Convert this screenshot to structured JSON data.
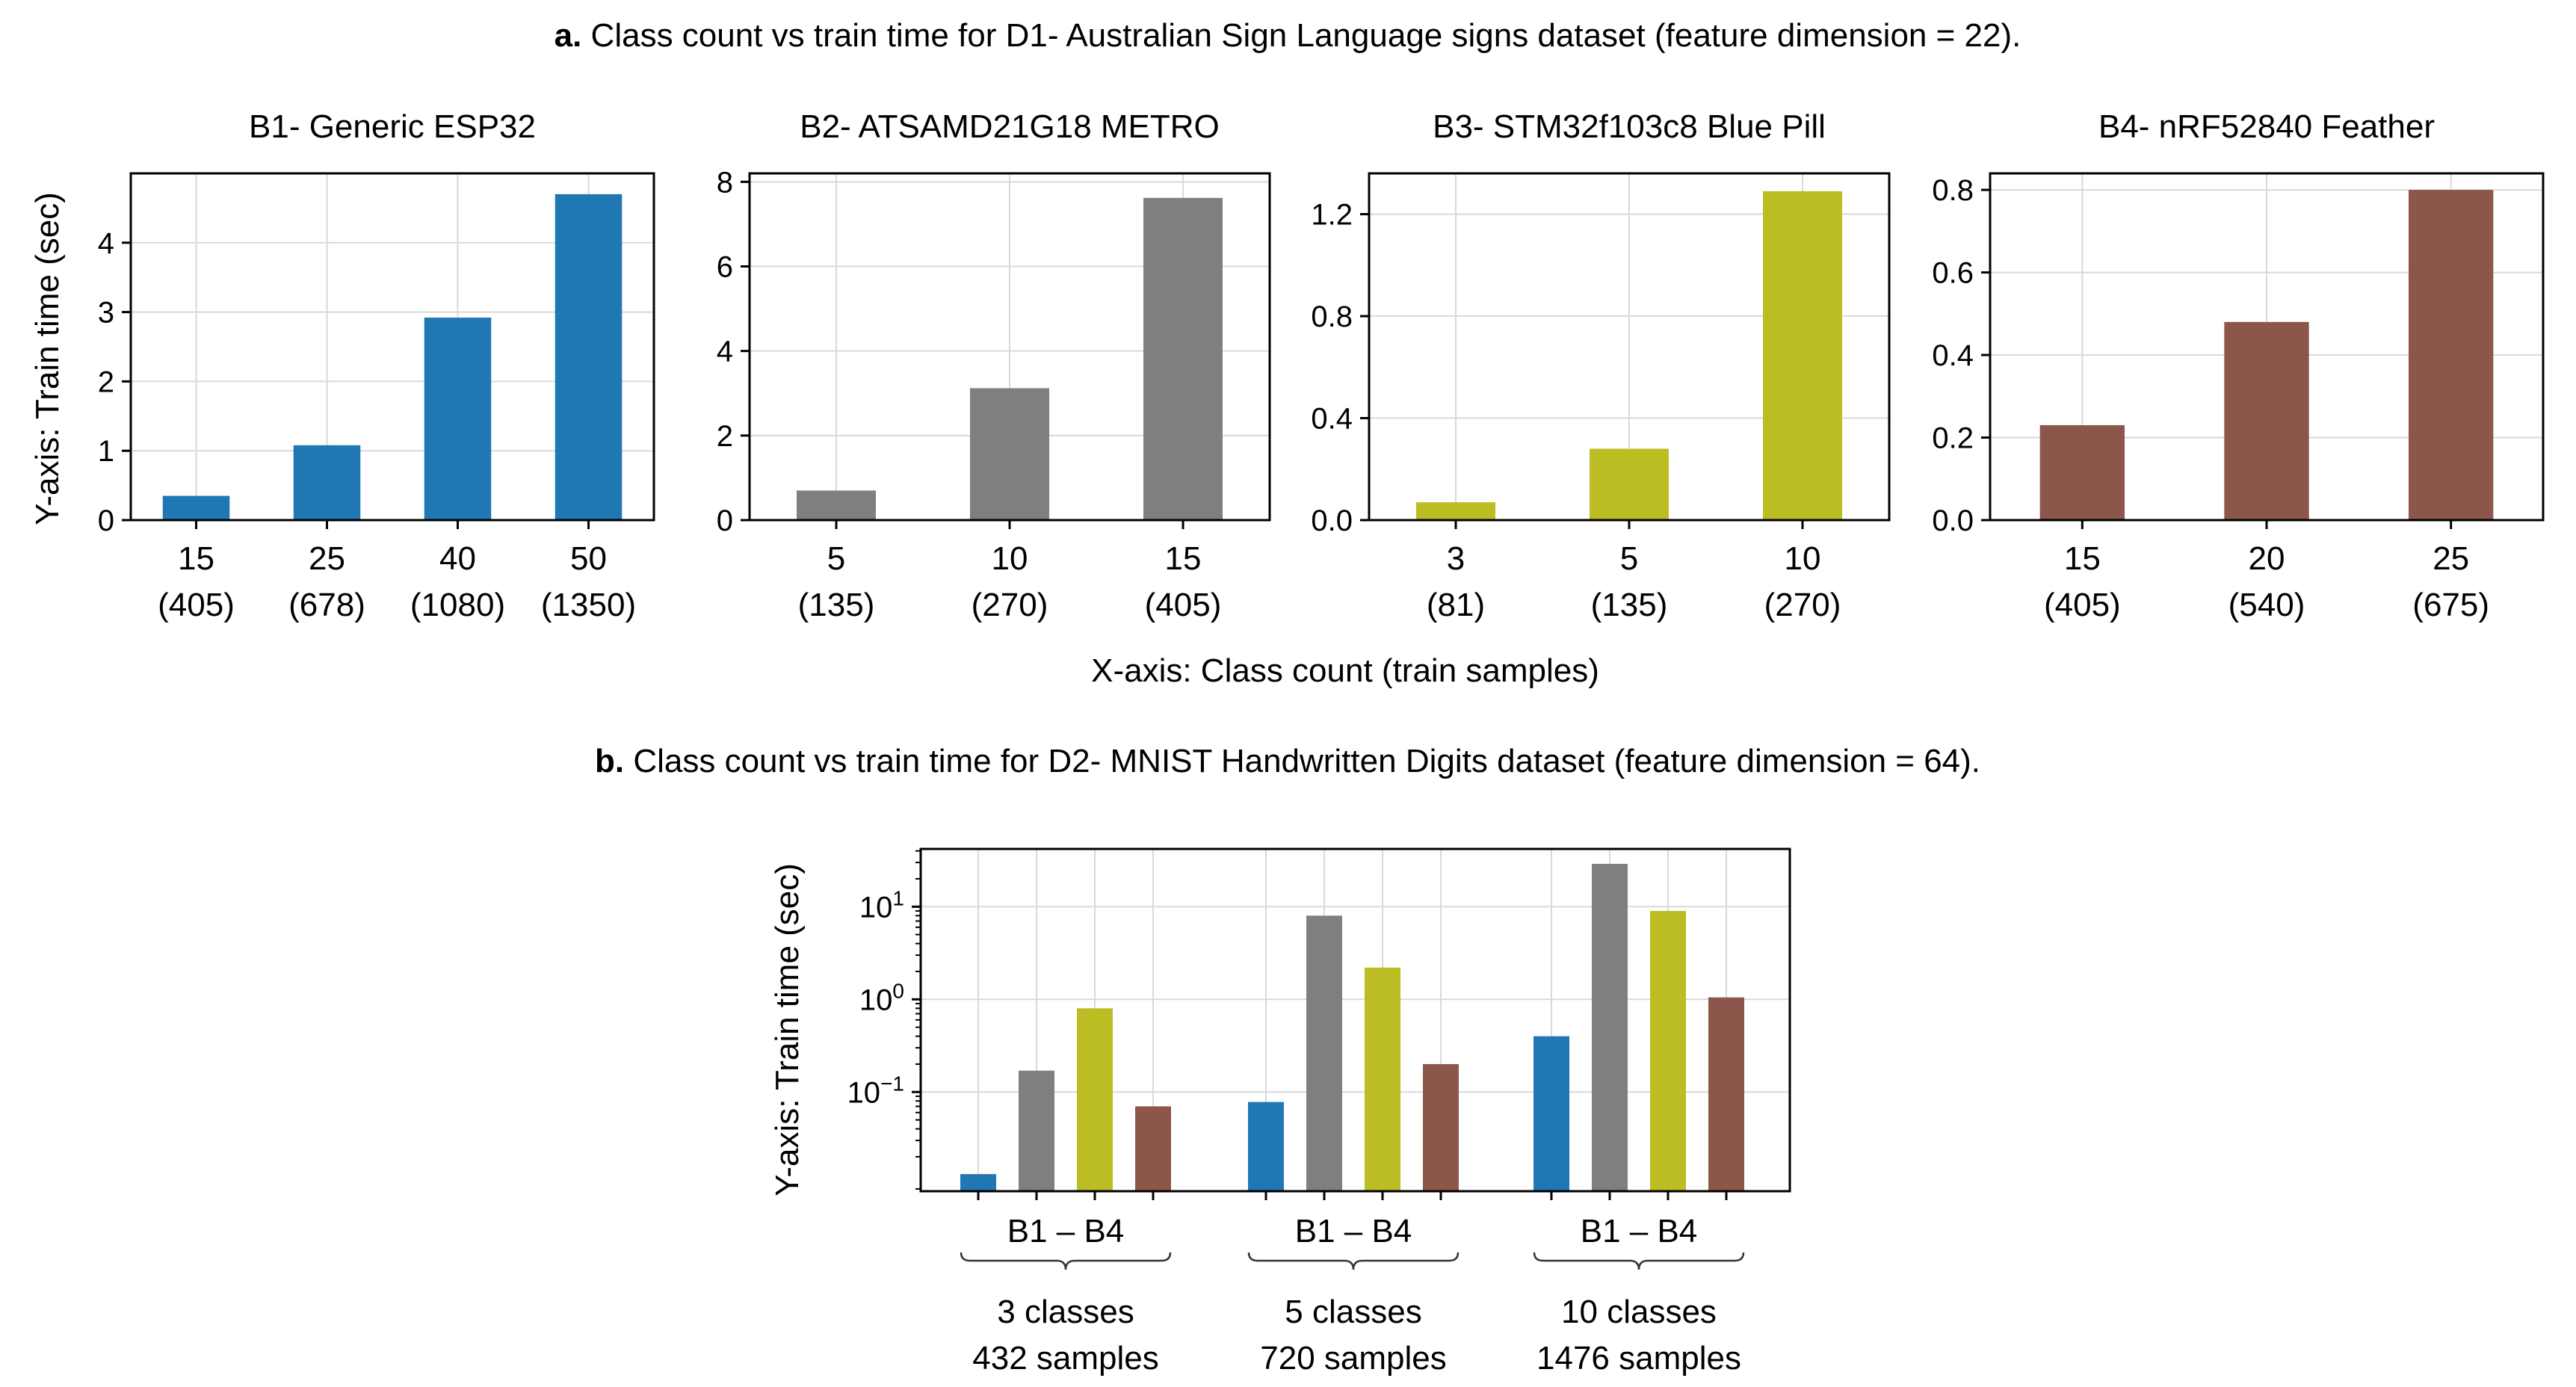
{
  "figure": {
    "caption_a_label": "a.",
    "caption_a_text": " Class count vs train time for D1- Australian Sign Language signs dataset (feature dimension = 22).",
    "caption_b_label": "b.",
    "caption_b_text": " Class count vs train time for D2- MNIST Handwritten Digits dataset (feature dimension = 64).",
    "top_ylabel": "Y-axis: Train time (sec)",
    "top_xlabel": "X-axis: Class count (train samples)",
    "bottom_ylabel": "Y-axis: Train time (sec)",
    "group_brace_label": "B1 – B4"
  },
  "chart_data": [
    {
      "type": "bar",
      "title": "B1- Generic ESP32",
      "color": "#1f77b4",
      "categories": [
        "15",
        "25",
        "40",
        "50"
      ],
      "category_sublabels": [
        "(405)",
        "(678)",
        "(1080)",
        "(1350)"
      ],
      "values": [
        0.35,
        1.08,
        2.92,
        4.7
      ],
      "ylim": [
        0,
        5
      ],
      "yticks": [
        0,
        1,
        2,
        3,
        4
      ],
      "ytick_labels": [
        "0",
        "1",
        "2",
        "3",
        "4"
      ],
      "grid": true
    },
    {
      "type": "bar",
      "title": "B2- ATSAMD21G18 METRO",
      "color": "#7f7f7f",
      "categories": [
        "5",
        "10",
        "15"
      ],
      "category_sublabels": [
        "(135)",
        "(270)",
        "(405)"
      ],
      "values": [
        0.7,
        3.12,
        7.62
      ],
      "ylim": [
        0,
        8.2
      ],
      "yticks": [
        0,
        2,
        4,
        6,
        8
      ],
      "ytick_labels": [
        "0",
        "2",
        "4",
        "6",
        "8"
      ],
      "grid": true
    },
    {
      "type": "bar",
      "title": "B3- STM32f103c8 Blue Pill",
      "color": "#bcbd22",
      "categories": [
        "3",
        "5",
        "10"
      ],
      "category_sublabels": [
        "(81)",
        "(135)",
        "(270)"
      ],
      "values": [
        0.07,
        0.28,
        1.29
      ],
      "ylim": [
        0,
        1.36
      ],
      "yticks": [
        0,
        0.4,
        0.8,
        1.2
      ],
      "ytick_labels": [
        "0.0",
        "0.4",
        "0.8",
        "1.2"
      ],
      "grid": true
    },
    {
      "type": "bar",
      "title": "B4- nRF52840 Feather",
      "color": "#8c564b",
      "categories": [
        "15",
        "20",
        "25"
      ],
      "category_sublabels": [
        "(405)",
        "(540)",
        "(675)"
      ],
      "values": [
        0.23,
        0.48,
        0.8
      ],
      "ylim": [
        0,
        0.84
      ],
      "yticks": [
        0,
        0.2,
        0.4,
        0.6,
        0.8
      ],
      "ytick_labels": [
        "0.0",
        "0.2",
        "0.4",
        "0.6",
        "0.8"
      ],
      "grid": true
    },
    {
      "type": "bar",
      "scale": "log",
      "groups": [
        {
          "label_line1": "3 classes",
          "label_line2": "432 samples",
          "values": [
            0.013,
            0.17,
            0.8,
            0.07
          ]
        },
        {
          "label_line1": "5 classes",
          "label_line2": "720 samples",
          "values": [
            0.078,
            8.0,
            2.2,
            0.2
          ]
        },
        {
          "label_line1": "10 classes",
          "label_line2": "1476 samples",
          "values": [
            0.4,
            29.0,
            9.0,
            1.05
          ]
        }
      ],
      "series_colors": [
        "#1f77b4",
        "#7f7f7f",
        "#bcbd22",
        "#8c564b"
      ],
      "ylim": [
        0.0085,
        42
      ],
      "yticks": [
        0.1,
        1,
        10
      ],
      "ytick_base": "10",
      "ytick_exponents": [
        "−1",
        "0",
        "1"
      ],
      "grid": true
    }
  ]
}
